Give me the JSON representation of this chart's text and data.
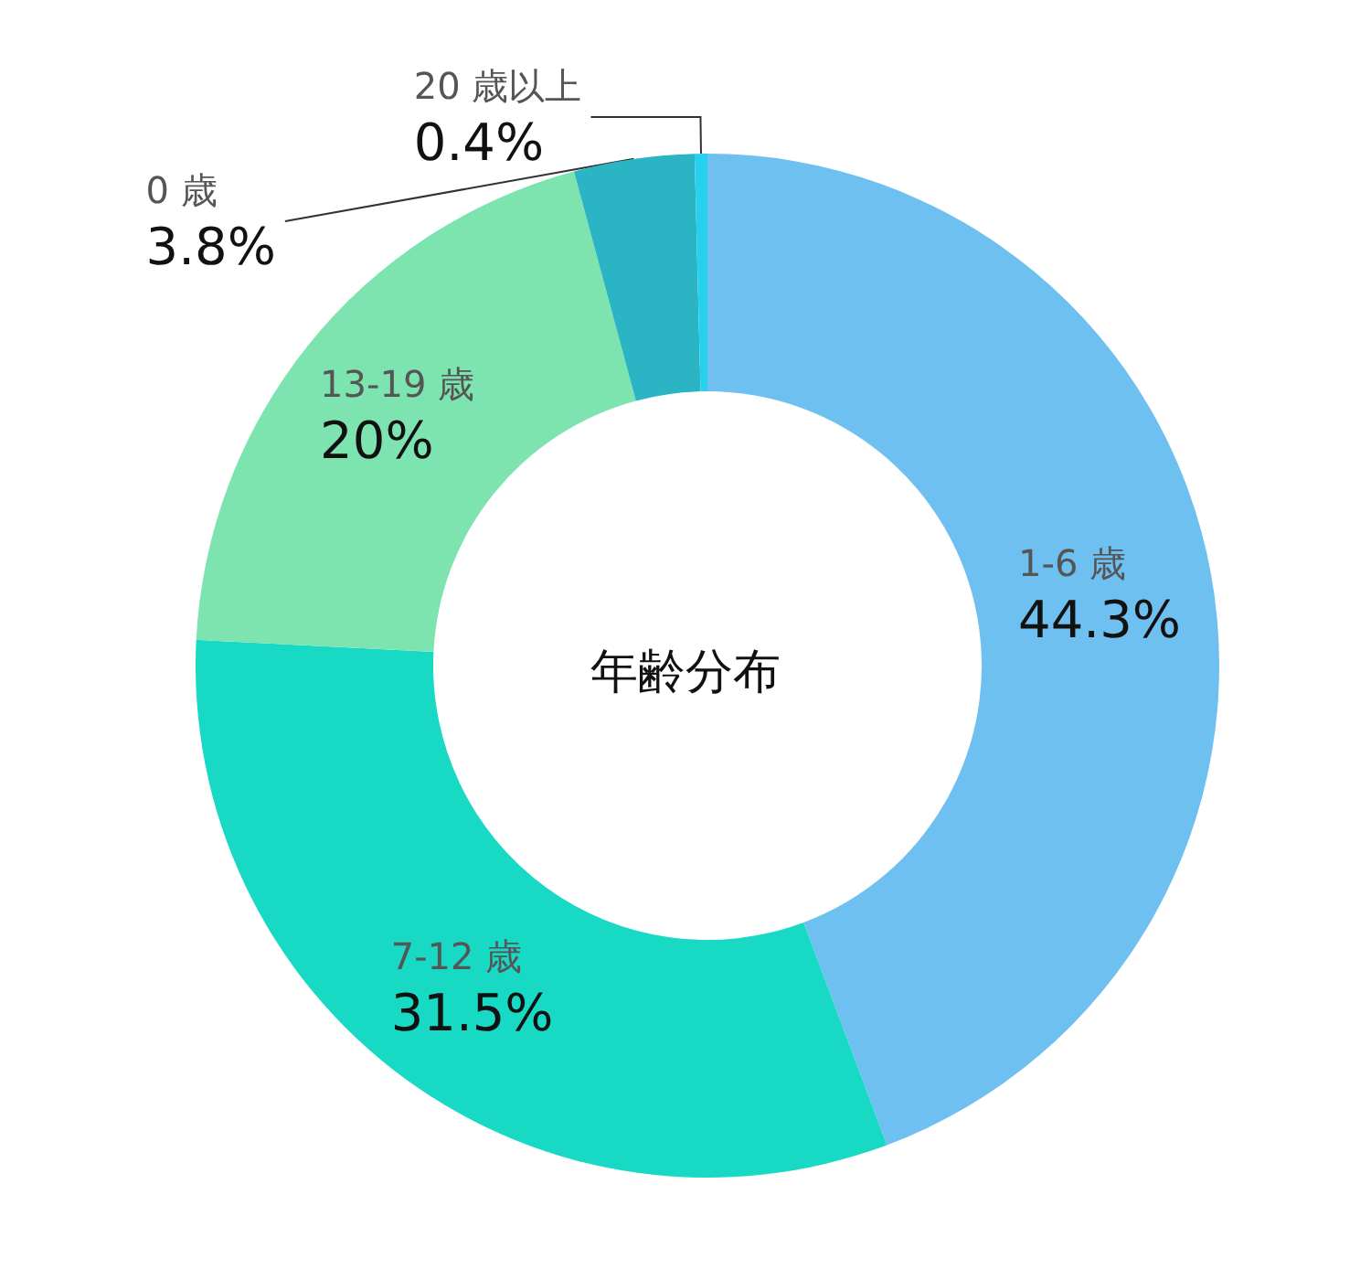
{
  "chart_data": {
    "type": "donut",
    "title": "年齢分布",
    "categories": [
      "1-6 歳",
      "7-12 歳",
      "13-19 歳",
      "0 歳",
      "20 歳以上"
    ],
    "values": [
      44.3,
      31.5,
      20,
      3.8,
      0.4
    ],
    "value_labels": [
      "44.3%",
      "31.5%",
      "20%",
      "3.8%",
      "0.4%"
    ],
    "colors": [
      "#6ec0f0",
      "#17d9c4",
      "#7de4b0",
      "#2bb5c4",
      "#28d0f0"
    ]
  }
}
